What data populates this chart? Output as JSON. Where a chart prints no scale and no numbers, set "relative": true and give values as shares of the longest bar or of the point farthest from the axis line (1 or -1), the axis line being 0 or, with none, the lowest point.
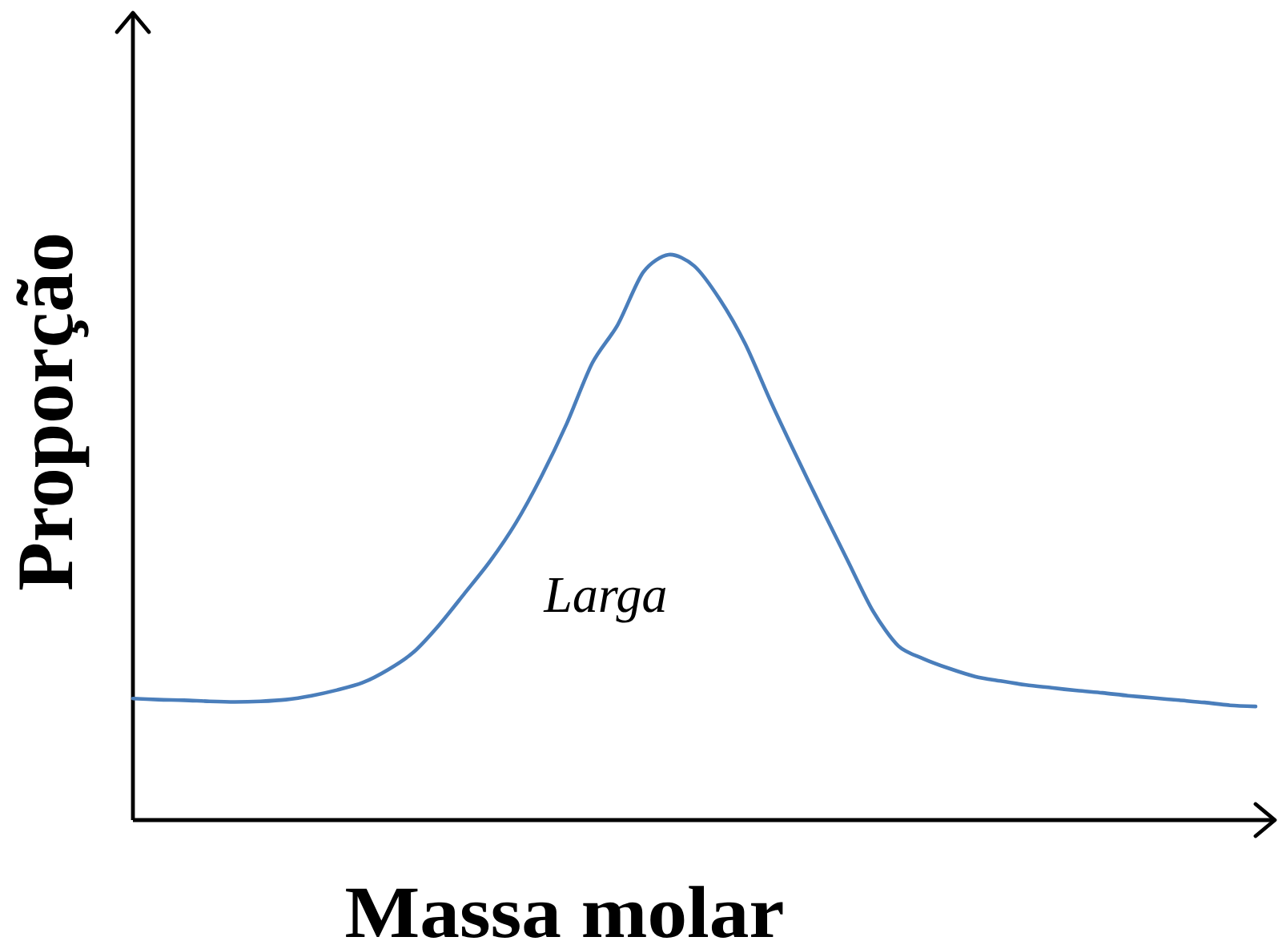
{
  "chart_data": {
    "type": "line",
    "xlabel": "Massa molar",
    "ylabel": "Proporção",
    "categories": [
      null,
      null,
      null,
      null,
      null,
      null,
      null,
      null,
      null,
      null,
      null,
      null,
      null,
      null,
      null,
      null,
      null,
      null,
      null,
      null,
      null,
      null,
      null,
      null,
      null,
      null,
      null,
      null,
      null,
      null,
      null,
      null,
      null,
      null,
      null,
      null,
      null,
      null,
      null,
      null,
      null,
      null,
      null,
      null,
      null
    ],
    "values": [
      0.215,
      0.213,
      0.212,
      0.21,
      0.209,
      0.21,
      0.213,
      0.22,
      0.23,
      0.243,
      0.266,
      0.297,
      0.345,
      0.401,
      0.458,
      0.525,
      0.607,
      0.701,
      0.808,
      0.876,
      0.969,
      1,
      0.98,
      0.921,
      0.842,
      0.74,
      0.644,
      0.551,
      0.46,
      0.37,
      0.308,
      0.285,
      0.268,
      0.254,
      0.246,
      0.239,
      0.234,
      0.229,
      0.225,
      0.22,
      0.216,
      0.212,
      0.208,
      0.203,
      0.201
    ],
    "color": "#4a7ebb",
    "relative": true,
    "annotations": [
      "*Larga*"
    ]
  }
}
